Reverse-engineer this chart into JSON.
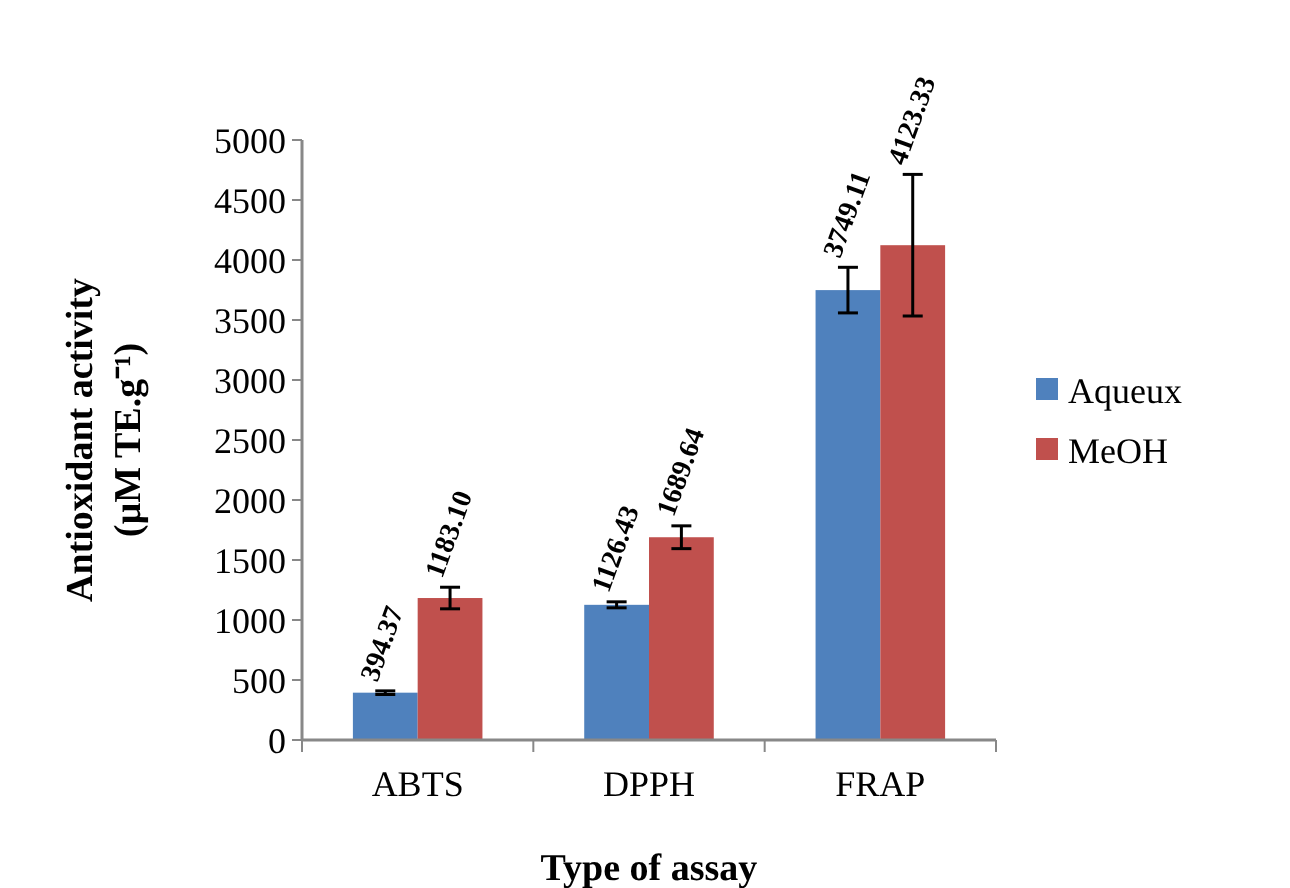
{
  "chart_data": {
    "type": "bar",
    "xlabel": "Type of assay",
    "ylabel": "Antioxidant activity (µM TE.g⁻¹)",
    "categories": [
      "ABTS",
      "DPPH",
      "FRAP"
    ],
    "series": [
      {
        "name": "Aqueux",
        "color": "#4f81bd",
        "values": [
          394.37,
          1126.43,
          3749.11
        ],
        "errors": [
          15,
          25,
          190
        ],
        "value_labels": [
          "394.37",
          "1126.43",
          "3749.11"
        ]
      },
      {
        "name": "MeOH",
        "color": "#c0504d",
        "values": [
          1183.1,
          1689.64,
          4123.33
        ],
        "errors": [
          90,
          95,
          590
        ],
        "value_labels": [
          "1183.10",
          "1689.64",
          "4123.33"
        ]
      }
    ],
    "ylim": [
      0,
      5000
    ],
    "yticks": [
      0,
      500,
      1000,
      1500,
      2000,
      2500,
      3000,
      3500,
      4000,
      4500,
      5000
    ],
    "legend": "right",
    "grid": false
  }
}
